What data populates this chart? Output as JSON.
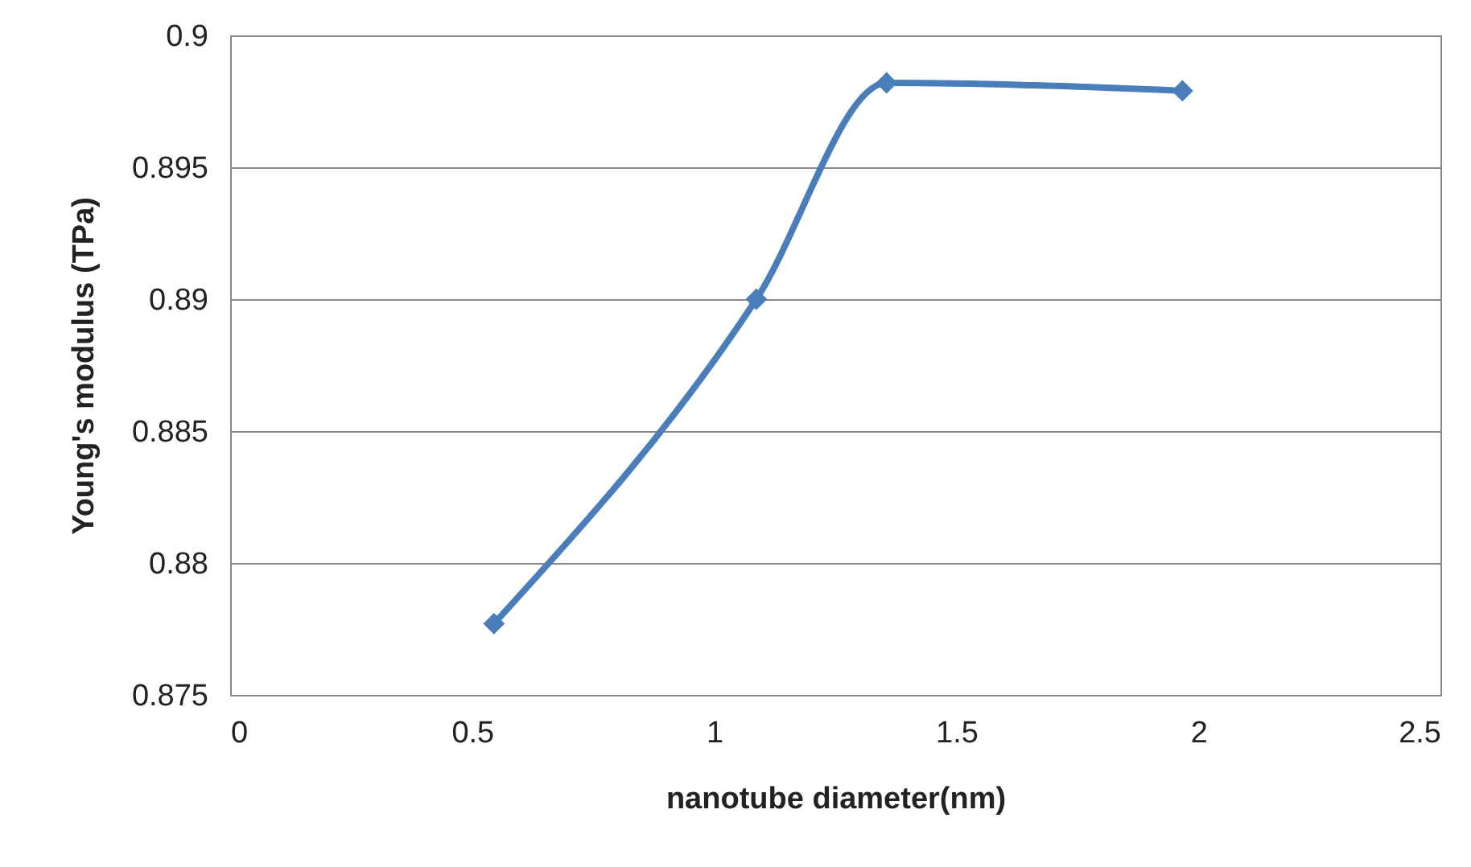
{
  "chart_data": {
    "type": "line",
    "xlabel": "nanotube diameter(nm)",
    "ylabel": "Young's modulus (TPa)",
    "x": [
      0.545,
      1.087,
      1.356,
      1.967
    ],
    "series": [
      {
        "color": "#4a7ebb",
        "values": [
          0.8777,
          0.89,
          0.8982,
          0.8979
        ]
      }
    ],
    "xlim": [
      0,
      2.5
    ],
    "xticks": [
      0,
      0.5,
      1,
      1.5,
      2,
      2.5
    ],
    "ylim": [
      0.875,
      0.9
    ],
    "yticks": [
      0.875,
      0.88,
      0.885,
      0.89,
      0.895,
      0.9
    ],
    "grid": "y",
    "marker": "diamond",
    "line_style": "solid"
  }
}
